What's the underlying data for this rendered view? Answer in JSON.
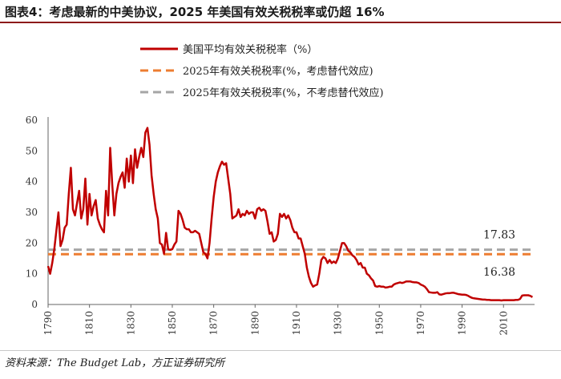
{
  "header": {
    "title": "图表4：考虑最新的中美协议，2025 年美国有效关税税率或仍超 16%"
  },
  "footer": {
    "source": "资料来源：The Budget Lab，方正证券研究所"
  },
  "colors": {
    "line": "#c00000",
    "orange_dash": "#ed7d31",
    "gray_dash": "#a6a6a6",
    "accent": "#8c1a1a"
  },
  "chart_data": {
    "type": "line",
    "title": "",
    "xlabel": "",
    "ylabel": "",
    "xlim": [
      1790,
      2025
    ],
    "ylim": [
      0,
      60
    ],
    "yticks": [
      0,
      10,
      20,
      30,
      40,
      50,
      60
    ],
    "xticks": [
      1790,
      1810,
      1830,
      1850,
      1870,
      1890,
      1910,
      1930,
      1950,
      1970,
      1990,
      2010
    ],
    "grid": false,
    "legend_position": "top-left",
    "series": [
      {
        "name": "美国平均有效关税税率（%）",
        "style": "solid",
        "color": "#c00000",
        "points": [
          [
            1790,
            12.5
          ],
          [
            1791,
            10
          ],
          [
            1792,
            13.5
          ],
          [
            1793,
            18
          ],
          [
            1794,
            24
          ],
          [
            1795,
            30
          ],
          [
            1796,
            19
          ],
          [
            1797,
            21
          ],
          [
            1798,
            25
          ],
          [
            1799,
            26
          ],
          [
            1800,
            36
          ],
          [
            1801,
            44.5
          ],
          [
            1802,
            31
          ],
          [
            1803,
            29
          ],
          [
            1804,
            33
          ],
          [
            1805,
            37
          ],
          [
            1806,
            28
          ],
          [
            1807,
            31
          ],
          [
            1808,
            41
          ],
          [
            1809,
            26
          ],
          [
            1810,
            36
          ],
          [
            1811,
            29
          ],
          [
            1812,
            32
          ],
          [
            1813,
            34
          ],
          [
            1814,
            28
          ],
          [
            1815,
            26
          ],
          [
            1816,
            24.5
          ],
          [
            1817,
            23.5
          ],
          [
            1818,
            37
          ],
          [
            1819,
            29
          ],
          [
            1820,
            51
          ],
          [
            1821,
            39
          ],
          [
            1822,
            29
          ],
          [
            1823,
            36
          ],
          [
            1824,
            39.5
          ],
          [
            1825,
            41.5
          ],
          [
            1826,
            43
          ],
          [
            1827,
            38
          ],
          [
            1828,
            47.5
          ],
          [
            1829,
            40
          ],
          [
            1830,
            48.5
          ],
          [
            1831,
            39.5
          ],
          [
            1832,
            50.5
          ],
          [
            1833,
            44.5
          ],
          [
            1834,
            48
          ],
          [
            1835,
            51
          ],
          [
            1836,
            48
          ],
          [
            1837,
            56
          ],
          [
            1838,
            57.5
          ],
          [
            1839,
            52
          ],
          [
            1840,
            42
          ],
          [
            1841,
            36
          ],
          [
            1842,
            31
          ],
          [
            1843,
            28
          ],
          [
            1844,
            20
          ],
          [
            1845,
            19.5
          ],
          [
            1846,
            16.5
          ],
          [
            1847,
            23.3
          ],
          [
            1848,
            18
          ],
          [
            1849,
            17.8
          ],
          [
            1850,
            18
          ],
          [
            1851,
            19.5
          ],
          [
            1852,
            20.5
          ],
          [
            1853,
            30.5
          ],
          [
            1854,
            29.5
          ],
          [
            1855,
            27.5
          ],
          [
            1856,
            25
          ],
          [
            1857,
            24.5
          ],
          [
            1858,
            24.5
          ],
          [
            1859,
            23.5
          ],
          [
            1860,
            23.5
          ],
          [
            1861,
            24
          ],
          [
            1862,
            23.5
          ],
          [
            1863,
            23
          ],
          [
            1864,
            20
          ],
          [
            1865,
            17
          ],
          [
            1866,
            16.5
          ],
          [
            1867,
            15
          ],
          [
            1868,
            20
          ],
          [
            1869,
            28
          ],
          [
            1870,
            35
          ],
          [
            1871,
            40
          ],
          [
            1872,
            43
          ],
          [
            1873,
            45
          ],
          [
            1874,
            46.5
          ],
          [
            1875,
            45.5
          ],
          [
            1876,
            46
          ],
          [
            1877,
            41
          ],
          [
            1878,
            36
          ],
          [
            1879,
            28
          ],
          [
            1880,
            28.5
          ],
          [
            1881,
            29
          ],
          [
            1882,
            31
          ],
          [
            1883,
            28.5
          ],
          [
            1884,
            29.5
          ],
          [
            1885,
            29
          ],
          [
            1886,
            30.5
          ],
          [
            1887,
            29.5
          ],
          [
            1888,
            30
          ],
          [
            1889,
            30
          ],
          [
            1890,
            28
          ],
          [
            1891,
            31
          ],
          [
            1892,
            31.5
          ],
          [
            1893,
            30.5
          ],
          [
            1894,
            31
          ],
          [
            1895,
            30.5
          ],
          [
            1896,
            27
          ],
          [
            1897,
            23
          ],
          [
            1898,
            23.5
          ],
          [
            1899,
            20.5
          ],
          [
            1900,
            21
          ],
          [
            1901,
            23
          ],
          [
            1902,
            29.5
          ],
          [
            1903,
            28.5
          ],
          [
            1904,
            29.5
          ],
          [
            1905,
            28
          ],
          [
            1906,
            29
          ],
          [
            1907,
            27.5
          ],
          [
            1908,
            25
          ],
          [
            1909,
            23.5
          ],
          [
            1910,
            23.5
          ],
          [
            1911,
            21.5
          ],
          [
            1912,
            21.5
          ],
          [
            1913,
            19
          ],
          [
            1914,
            16.5
          ],
          [
            1915,
            12
          ],
          [
            1916,
            9
          ],
          [
            1917,
            7
          ],
          [
            1918,
            5.8
          ],
          [
            1919,
            6.2
          ],
          [
            1920,
            6.5
          ],
          [
            1921,
            10
          ],
          [
            1922,
            14.5
          ],
          [
            1923,
            15.5
          ],
          [
            1924,
            15
          ],
          [
            1925,
            13.5
          ],
          [
            1926,
            14.5
          ],
          [
            1927,
            13.5
          ],
          [
            1928,
            14
          ],
          [
            1929,
            13.5
          ],
          [
            1930,
            15
          ],
          [
            1931,
            17.5
          ],
          [
            1932,
            20
          ],
          [
            1933,
            20
          ],
          [
            1934,
            19
          ],
          [
            1935,
            17.5
          ],
          [
            1936,
            17
          ],
          [
            1937,
            16
          ],
          [
            1938,
            15.5
          ],
          [
            1939,
            14.5
          ],
          [
            1940,
            13
          ],
          [
            1941,
            13.5
          ],
          [
            1942,
            12
          ],
          [
            1943,
            12
          ],
          [
            1944,
            10
          ],
          [
            1945,
            9.5
          ],
          [
            1946,
            8.5
          ],
          [
            1947,
            7.8
          ],
          [
            1948,
            6
          ],
          [
            1949,
            5.8
          ],
          [
            1950,
            6
          ],
          [
            1951,
            5.8
          ],
          [
            1952,
            5.8
          ],
          [
            1953,
            5.5
          ],
          [
            1954,
            5.6
          ],
          [
            1955,
            5.8
          ],
          [
            1956,
            5.8
          ],
          [
            1957,
            6.5
          ],
          [
            1958,
            6.8
          ],
          [
            1959,
            7
          ],
          [
            1960,
            7.2
          ],
          [
            1961,
            7
          ],
          [
            1962,
            7.2
          ],
          [
            1963,
            7.5
          ],
          [
            1964,
            7.5
          ],
          [
            1965,
            7.5
          ],
          [
            1966,
            7.3
          ],
          [
            1967,
            7.2
          ],
          [
            1968,
            7.2
          ],
          [
            1969,
            7
          ],
          [
            1970,
            6.5
          ],
          [
            1971,
            6.2
          ],
          [
            1972,
            5.8
          ],
          [
            1973,
            5
          ],
          [
            1974,
            4
          ],
          [
            1975,
            3.9
          ],
          [
            1976,
            3.8
          ],
          [
            1977,
            3.8
          ],
          [
            1978,
            4
          ],
          [
            1979,
            3.3
          ],
          [
            1980,
            3.2
          ],
          [
            1981,
            3.4
          ],
          [
            1982,
            3.6
          ],
          [
            1983,
            3.7
          ],
          [
            1984,
            3.7
          ],
          [
            1985,
            3.8
          ],
          [
            1986,
            3.8
          ],
          [
            1987,
            3.6
          ],
          [
            1988,
            3.4
          ],
          [
            1989,
            3.3
          ],
          [
            1990,
            3.2
          ],
          [
            1991,
            3.2
          ],
          [
            1992,
            3.1
          ],
          [
            1993,
            2.8
          ],
          [
            1994,
            2.4
          ],
          [
            1995,
            2.1
          ],
          [
            1996,
            2
          ],
          [
            1997,
            1.9
          ],
          [
            1998,
            1.8
          ],
          [
            1999,
            1.7
          ],
          [
            2000,
            1.6
          ],
          [
            2001,
            1.6
          ],
          [
            2002,
            1.5
          ],
          [
            2003,
            1.5
          ],
          [
            2004,
            1.4
          ],
          [
            2005,
            1.4
          ],
          [
            2006,
            1.4
          ],
          [
            2007,
            1.4
          ],
          [
            2008,
            1.4
          ],
          [
            2009,
            1.3
          ],
          [
            2010,
            1.4
          ],
          [
            2011,
            1.4
          ],
          [
            2012,
            1.4
          ],
          [
            2013,
            1.4
          ],
          [
            2014,
            1.4
          ],
          [
            2015,
            1.4
          ],
          [
            2016,
            1.5
          ],
          [
            2017,
            1.5
          ],
          [
            2018,
            1.8
          ],
          [
            2019,
            2.9
          ],
          [
            2020,
            3
          ],
          [
            2021,
            3
          ],
          [
            2022,
            3
          ],
          [
            2023,
            2.8
          ],
          [
            2024,
            2.4
          ]
        ]
      },
      {
        "name": "2025年有效关税税率(%，考虑替代效应)",
        "style": "dashed",
        "color": "#ed7d31",
        "constant": 16.38,
        "label": "16.38"
      },
      {
        "name": "2025年有效关税税率(%，不考虑替代效应)",
        "style": "dashed",
        "color": "#a6a6a6",
        "constant": 17.83,
        "label": "17.83"
      }
    ]
  }
}
